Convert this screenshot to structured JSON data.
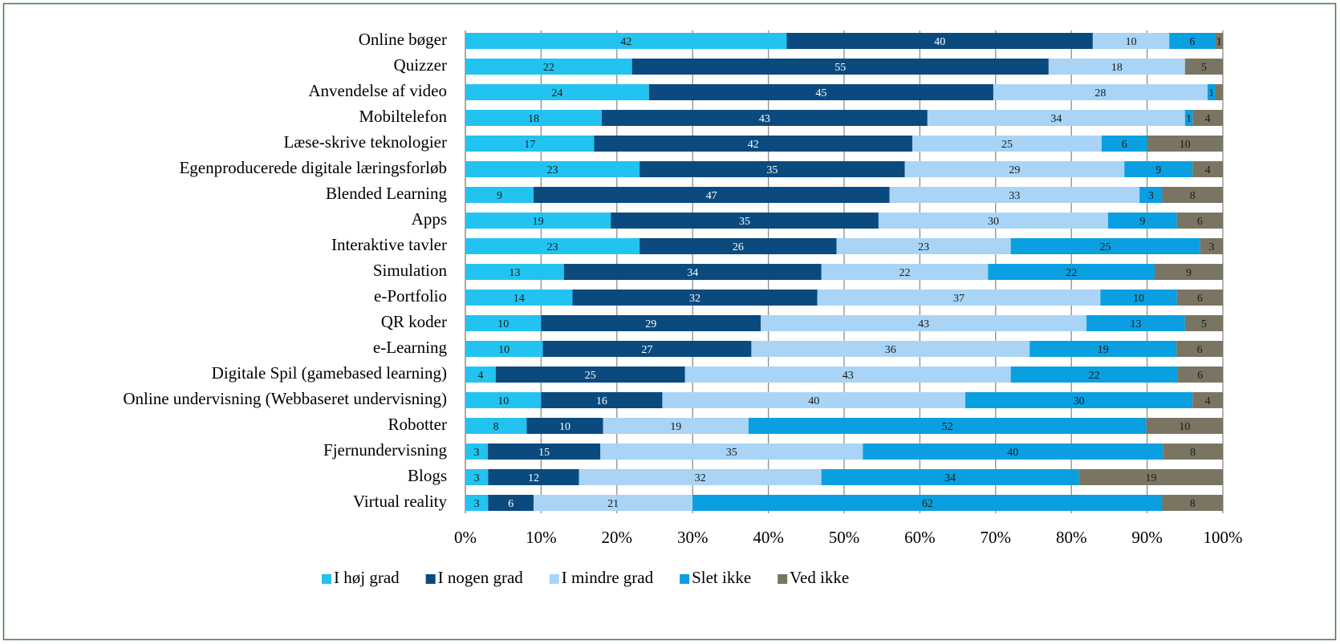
{
  "chart_data": {
    "type": "bar",
    "orientation": "horizontal",
    "stacked": "percent",
    "categories": [
      "Online bøger",
      "Quizzer",
      "Anvendelse af video",
      "Mobiltelefon",
      "Læse-skrive teknologier",
      "Egenproducerede digitale læringsforløb",
      "Blended Learning",
      "Apps",
      "Interaktive tavler",
      "Simulation",
      "e-Portfolio",
      "QR koder",
      "e-Learning",
      "Digitale Spil (gamebased learning)",
      "Online undervisning (Webbaseret undervisning)",
      "Robotter",
      "Fjernundervisning",
      "Blogs",
      "Virtual reality"
    ],
    "series": [
      {
        "name": "I høj grad",
        "color": "#22c3f0",
        "label_color": "#1a1a1a",
        "values": [
          42,
          22,
          24,
          18,
          17,
          23,
          9,
          19,
          23,
          13,
          14,
          10,
          10,
          4,
          10,
          8,
          3,
          3,
          3
        ]
      },
      {
        "name": "I nogen grad",
        "color": "#0b4a7e",
        "label_color": "#ffffff",
        "values": [
          40,
          55,
          45,
          43,
          42,
          35,
          47,
          35,
          26,
          34,
          32,
          29,
          27,
          25,
          16,
          10,
          15,
          12,
          6
        ]
      },
      {
        "name": "I mindre grad",
        "color": "#a9d4f5",
        "label_color": "#1a1a1a",
        "values": [
          10,
          18,
          28,
          34,
          25,
          29,
          33,
          30,
          23,
          22,
          37,
          43,
          36,
          43,
          40,
          19,
          35,
          32,
          21
        ]
      },
      {
        "name": "Slet ikke",
        "color": "#0a9fe0",
        "label_color": "#1a1a1a",
        "values": [
          6,
          null,
          1,
          1,
          6,
          9,
          3,
          9,
          25,
          22,
          10,
          13,
          19,
          22,
          30,
          52,
          40,
          34,
          62
        ]
      },
      {
        "name": "Ved ikke",
        "color": "#7a7562",
        "label_color": "#1a1a1a",
        "values": [
          1,
          5,
          1,
          4,
          10,
          4,
          8,
          6,
          3,
          9,
          6,
          5,
          6,
          6,
          4,
          10,
          8,
          19,
          8
        ],
        "value_labels": [
          "1",
          "5",
          null,
          "4",
          "10",
          "4",
          "8",
          "6",
          "3",
          "9",
          "6",
          "5",
          "6",
          "6",
          "4",
          "10",
          "8",
          "19",
          "8"
        ]
      }
    ],
    "xlim": [
      0,
      100
    ],
    "xticks": [
      {
        "value": 0,
        "label": "0%"
      },
      {
        "value": 10,
        "label": "10%"
      },
      {
        "value": 20,
        "label": "20%"
      },
      {
        "value": 30,
        "label": "30%"
      },
      {
        "value": 40,
        "label": "40%"
      },
      {
        "value": 50,
        "label": "50%"
      },
      {
        "value": 60,
        "label": "60%"
      },
      {
        "value": 70,
        "label": "70%"
      },
      {
        "value": 80,
        "label": "80%"
      },
      {
        "value": 90,
        "label": "90%"
      },
      {
        "value": 100,
        "label": "100%"
      }
    ],
    "grid": true,
    "legend": "bottom"
  }
}
